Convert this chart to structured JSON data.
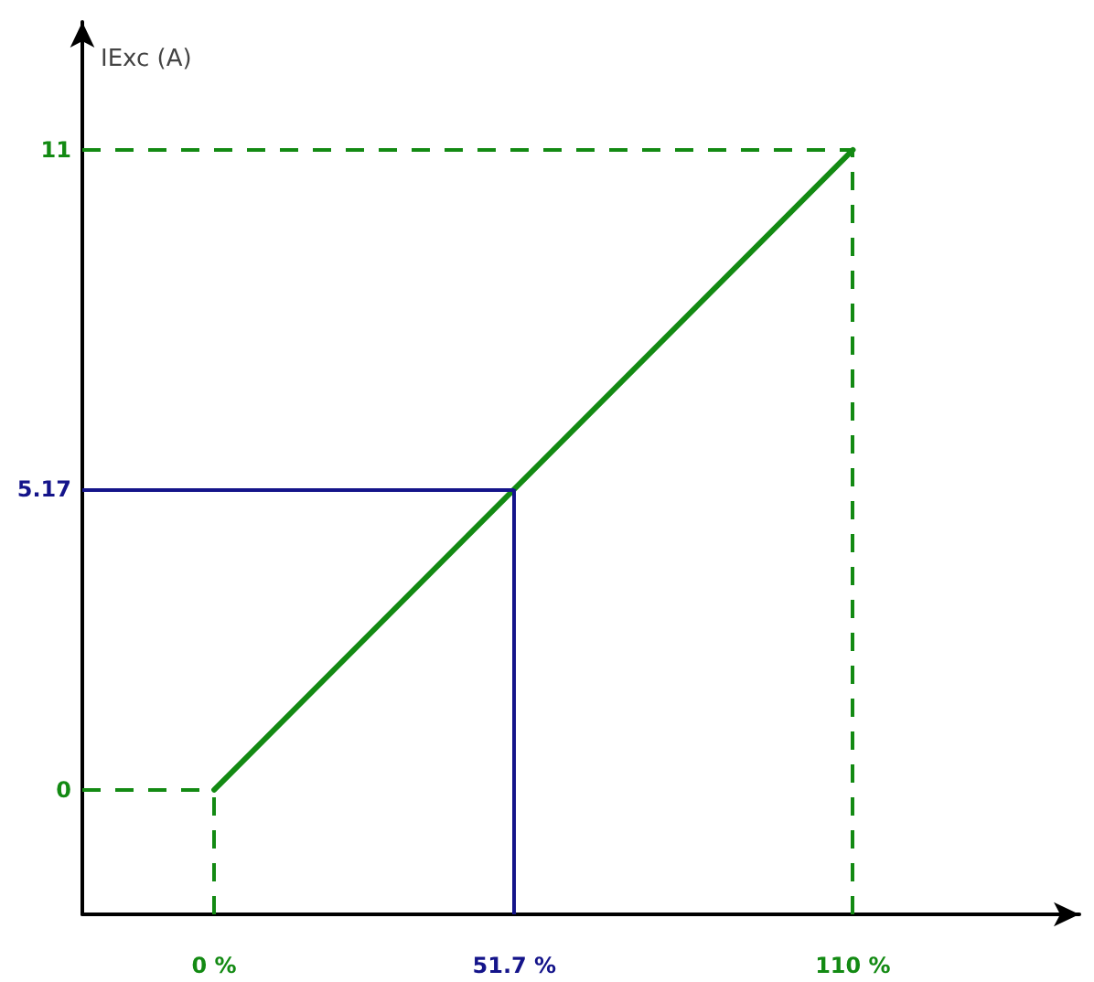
{
  "chart_data": {
    "type": "line",
    "ylabel": "IExc (A)",
    "series": [
      {
        "color": "#138a13",
        "x": [
          0,
          110
        ],
        "values": [
          0,
          11
        ]
      }
    ],
    "xlim": [
      -22.7,
      149
    ],
    "ylim": [
      -2.14,
      13.2
    ],
    "xticks": [
      {
        "value": 0,
        "label": "0 %"
      },
      {
        "value": 51.7,
        "label": "51.7 %"
      },
      {
        "value": 110,
        "label": "110 %"
      }
    ],
    "yticks": [
      0,
      5.17,
      11
    ],
    "ref_lines": [
      {
        "axis": "x",
        "value": 0,
        "color": "#138a13",
        "line_style": "dashed"
      },
      {
        "axis": "y",
        "value": 0,
        "color": "#138a13",
        "line_style": "dashed"
      },
      {
        "axis": "x",
        "value": 110,
        "color": "#138a13",
        "line_style": "dashed"
      },
      {
        "axis": "y",
        "value": 11,
        "color": "#138a13",
        "line_style": "dashed"
      },
      {
        "axis": "x",
        "value": 51.7,
        "color": "#14148a",
        "line_style": "solid"
      },
      {
        "axis": "y",
        "value": 5.17,
        "color": "#14148a",
        "line_style": "solid"
      }
    ],
    "grid": false,
    "marker": "none",
    "line_style": "solid"
  }
}
